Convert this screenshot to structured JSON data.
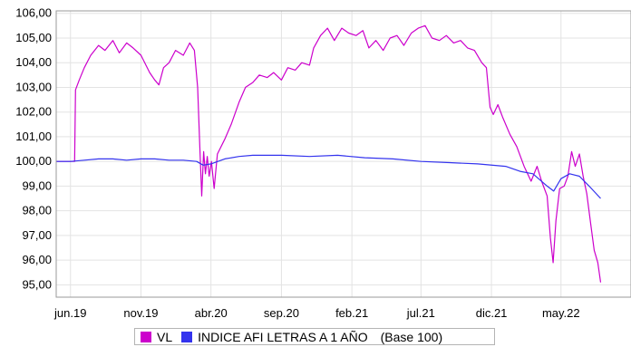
{
  "chart_data": {
    "type": "line",
    "title": "",
    "ylim": [
      94.5,
      106.1
    ],
    "yticks": [
      "106,00",
      "105,00",
      "104,00",
      "103,00",
      "102,00",
      "101,00",
      "100,00",
      "99,00",
      "98,00",
      "97,00",
      "96,00",
      "95,00"
    ],
    "x_range": [
      "2019-05-01",
      "2022-09-30"
    ],
    "xticks": [
      {
        "label": "jun.19",
        "date": "2019-06-01"
      },
      {
        "label": "nov.19",
        "date": "2019-11-01"
      },
      {
        "label": "abr.20",
        "date": "2020-04-01"
      },
      {
        "label": "sep.20",
        "date": "2020-09-01"
      },
      {
        "label": "feb.21",
        "date": "2021-02-01"
      },
      {
        "label": "jul.21",
        "date": "2021-07-01"
      },
      {
        "label": "dic.21",
        "date": "2021-12-01"
      },
      {
        "label": "may.22",
        "date": "2022-05-01"
      }
    ],
    "grid": true,
    "legend_position": "bottom",
    "legend_note": "(Base 100)",
    "series": [
      {
        "name": "VL",
        "color": "#cc00cc",
        "points": [
          [
            "2019-05-01",
            100.0
          ],
          [
            "2019-05-15",
            100.0
          ],
          [
            "2019-06-01",
            100.0
          ],
          [
            "2019-06-10",
            100.0
          ],
          [
            "2019-06-12",
            102.9
          ],
          [
            "2019-06-20",
            103.3
          ],
          [
            "2019-07-01",
            103.8
          ],
          [
            "2019-07-15",
            104.3
          ],
          [
            "2019-08-01",
            104.7
          ],
          [
            "2019-08-15",
            104.5
          ],
          [
            "2019-09-01",
            104.9
          ],
          [
            "2019-09-15",
            104.4
          ],
          [
            "2019-10-01",
            104.8
          ],
          [
            "2019-10-15",
            104.6
          ],
          [
            "2019-11-01",
            104.3
          ],
          [
            "2019-11-20",
            103.6
          ],
          [
            "2019-12-01",
            103.3
          ],
          [
            "2019-12-10",
            103.1
          ],
          [
            "2019-12-20",
            103.8
          ],
          [
            "2020-01-01",
            104.0
          ],
          [
            "2020-01-15",
            104.5
          ],
          [
            "2020-02-01",
            104.3
          ],
          [
            "2020-02-15",
            104.8
          ],
          [
            "2020-02-25",
            104.5
          ],
          [
            "2020-03-03",
            103.0
          ],
          [
            "2020-03-08",
            100.5
          ],
          [
            "2020-03-12",
            98.6
          ],
          [
            "2020-03-16",
            100.4
          ],
          [
            "2020-03-20",
            99.5
          ],
          [
            "2020-03-24",
            100.2
          ],
          [
            "2020-03-28",
            99.4
          ],
          [
            "2020-04-02",
            100.0
          ],
          [
            "2020-04-08",
            98.9
          ],
          [
            "2020-04-15",
            100.3
          ],
          [
            "2020-05-01",
            100.9
          ],
          [
            "2020-05-15",
            101.5
          ],
          [
            "2020-06-01",
            102.4
          ],
          [
            "2020-06-15",
            103.0
          ],
          [
            "2020-07-01",
            103.2
          ],
          [
            "2020-07-15",
            103.5
          ],
          [
            "2020-08-01",
            103.4
          ],
          [
            "2020-08-15",
            103.6
          ],
          [
            "2020-09-01",
            103.3
          ],
          [
            "2020-09-15",
            103.8
          ],
          [
            "2020-10-01",
            103.7
          ],
          [
            "2020-10-15",
            104.0
          ],
          [
            "2020-11-01",
            103.9
          ],
          [
            "2020-11-10",
            104.6
          ],
          [
            "2020-11-25",
            105.1
          ],
          [
            "2020-12-10",
            105.4
          ],
          [
            "2020-12-25",
            104.9
          ],
          [
            "2021-01-10",
            105.4
          ],
          [
            "2021-01-25",
            105.2
          ],
          [
            "2021-02-10",
            105.1
          ],
          [
            "2021-02-25",
            105.3
          ],
          [
            "2021-03-10",
            104.6
          ],
          [
            "2021-03-25",
            104.9
          ],
          [
            "2021-04-10",
            104.5
          ],
          [
            "2021-04-25",
            105.0
          ],
          [
            "2021-05-10",
            105.1
          ],
          [
            "2021-05-25",
            104.7
          ],
          [
            "2021-06-10",
            105.2
          ],
          [
            "2021-06-25",
            105.4
          ],
          [
            "2021-07-10",
            105.5
          ],
          [
            "2021-07-25",
            105.0
          ],
          [
            "2021-08-10",
            104.9
          ],
          [
            "2021-08-25",
            105.1
          ],
          [
            "2021-09-10",
            104.8
          ],
          [
            "2021-09-25",
            104.9
          ],
          [
            "2021-10-10",
            104.6
          ],
          [
            "2021-10-25",
            104.5
          ],
          [
            "2021-11-10",
            104.0
          ],
          [
            "2021-11-20",
            103.8
          ],
          [
            "2021-11-28",
            102.2
          ],
          [
            "2021-12-05",
            101.9
          ],
          [
            "2021-12-15",
            102.3
          ],
          [
            "2021-12-25",
            101.8
          ],
          [
            "2022-01-10",
            101.1
          ],
          [
            "2022-01-25",
            100.6
          ],
          [
            "2022-02-10",
            99.8
          ],
          [
            "2022-02-25",
            99.2
          ],
          [
            "2022-03-10",
            99.8
          ],
          [
            "2022-03-20",
            99.2
          ],
          [
            "2022-04-01",
            98.6
          ],
          [
            "2022-04-08",
            96.9
          ],
          [
            "2022-04-14",
            95.9
          ],
          [
            "2022-04-20",
            97.6
          ],
          [
            "2022-04-28",
            98.9
          ],
          [
            "2022-05-08",
            99.0
          ],
          [
            "2022-05-16",
            99.4
          ],
          [
            "2022-05-24",
            100.4
          ],
          [
            "2022-06-01",
            99.8
          ],
          [
            "2022-06-10",
            100.3
          ],
          [
            "2022-06-18",
            99.4
          ],
          [
            "2022-06-26",
            98.7
          ],
          [
            "2022-07-05",
            97.4
          ],
          [
            "2022-07-12",
            96.4
          ],
          [
            "2022-07-20",
            95.9
          ],
          [
            "2022-07-26",
            95.1
          ]
        ]
      },
      {
        "name": "INDICE AFI LETRAS A 1 AÑO",
        "color": "#3333ee",
        "points": [
          [
            "2019-05-01",
            100.0
          ],
          [
            "2019-06-01",
            100.0
          ],
          [
            "2019-07-01",
            100.05
          ],
          [
            "2019-08-01",
            100.1
          ],
          [
            "2019-09-01",
            100.1
          ],
          [
            "2019-10-01",
            100.05
          ],
          [
            "2019-11-01",
            100.1
          ],
          [
            "2019-12-01",
            100.1
          ],
          [
            "2020-01-01",
            100.05
          ],
          [
            "2020-02-01",
            100.05
          ],
          [
            "2020-03-01",
            100.0
          ],
          [
            "2020-03-15",
            99.85
          ],
          [
            "2020-04-01",
            99.9
          ],
          [
            "2020-05-01",
            100.1
          ],
          [
            "2020-06-01",
            100.2
          ],
          [
            "2020-07-01",
            100.25
          ],
          [
            "2020-09-01",
            100.25
          ],
          [
            "2020-11-01",
            100.2
          ],
          [
            "2021-01-01",
            100.25
          ],
          [
            "2021-03-01",
            100.15
          ],
          [
            "2021-05-01",
            100.1
          ],
          [
            "2021-07-01",
            100.0
          ],
          [
            "2021-09-01",
            99.95
          ],
          [
            "2021-11-01",
            99.9
          ],
          [
            "2022-01-01",
            99.8
          ],
          [
            "2022-02-01",
            99.6
          ],
          [
            "2022-03-01",
            99.5
          ],
          [
            "2022-04-01",
            99.0
          ],
          [
            "2022-04-15",
            98.8
          ],
          [
            "2022-05-01",
            99.3
          ],
          [
            "2022-05-20",
            99.5
          ],
          [
            "2022-06-10",
            99.4
          ],
          [
            "2022-07-01",
            99.0
          ],
          [
            "2022-07-26",
            98.5
          ]
        ]
      }
    ]
  }
}
